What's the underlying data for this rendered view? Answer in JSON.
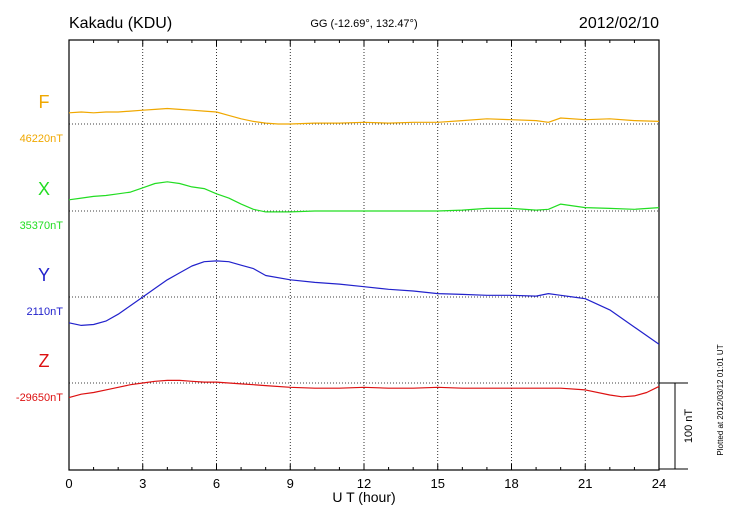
{
  "header": {
    "station": "Kakadu (KDU)",
    "coords": "GG (-12.69°, 132.47°)",
    "date": "2012/02/10"
  },
  "footer_note": "Plotted at 2012/03/12 01:01 UT",
  "chart_data": {
    "type": "line",
    "xlabel": "U T (hour)",
    "xlim": [
      0,
      24
    ],
    "x_ticks": [
      0,
      3,
      6,
      9,
      12,
      15,
      18,
      21,
      24
    ],
    "x_tick_labels": [
      "0",
      "3",
      "6",
      "9",
      "12",
      "15",
      "18",
      "21",
      "24"
    ],
    "scale_bar_label": "100 nT",
    "scale_bar_nT": 100,
    "series": [
      {
        "name": "F",
        "baseline_label": "46220nT",
        "baseline_nT": 46220,
        "color": "#f0a800",
        "x": [
          0,
          0.5,
          1,
          1.5,
          2,
          2.5,
          3,
          3.5,
          4,
          4.5,
          5,
          5.5,
          6,
          6.5,
          7,
          7.5,
          8,
          8.5,
          9,
          10,
          11,
          12,
          13,
          14,
          15,
          16,
          17,
          18,
          19,
          19.5,
          20,
          21,
          22,
          23,
          24
        ],
        "values": [
          13,
          14,
          13,
          14,
          14,
          15,
          16,
          17,
          18,
          17,
          16,
          15,
          14,
          10,
          6,
          3,
          1,
          0,
          0,
          1,
          1,
          2,
          1,
          2,
          2,
          4,
          6,
          5,
          4,
          2,
          7,
          5,
          6,
          4,
          3
        ]
      },
      {
        "name": "X",
        "baseline_label": "35370nT",
        "baseline_nT": 35370,
        "color": "#22dd22",
        "x": [
          0,
          0.5,
          1,
          1.5,
          2,
          2.5,
          3,
          3.5,
          4,
          4.5,
          5,
          5.5,
          6,
          6.5,
          7,
          7.5,
          8,
          8.5,
          9,
          10,
          11,
          12,
          13,
          14,
          15,
          16,
          17,
          18,
          19,
          19.5,
          20,
          21,
          22,
          23,
          24
        ],
        "values": [
          13,
          15,
          17,
          18,
          20,
          22,
          27,
          32,
          34,
          32,
          28,
          26,
          20,
          15,
          8,
          2,
          -1,
          -1,
          -1,
          0,
          0,
          0,
          0,
          0,
          0,
          1,
          3,
          3,
          1,
          2,
          8,
          4,
          3,
          2,
          4
        ]
      },
      {
        "name": "Y",
        "baseline_label": "2110nT",
        "baseline_nT": 2110,
        "color": "#2222cc",
        "x": [
          0,
          0.5,
          1,
          1.5,
          2,
          2.5,
          3,
          3.5,
          4,
          4.5,
          5,
          5.5,
          6,
          6.5,
          7,
          7.5,
          8,
          9,
          10,
          11,
          12,
          13,
          14,
          15,
          16,
          17,
          18,
          19,
          19.5,
          20,
          20.5,
          21,
          22,
          23,
          24
        ],
        "values": [
          -30,
          -33,
          -32,
          -28,
          -20,
          -10,
          0,
          10,
          20,
          28,
          36,
          41,
          42,
          41,
          37,
          33,
          25,
          20,
          17,
          15,
          12,
          9,
          7,
          4,
          3,
          2,
          2,
          1,
          4,
          2,
          0,
          -2,
          -15,
          -35,
          -55
        ]
      },
      {
        "name": "Z",
        "baseline_label": "-29650nT",
        "baseline_nT": -29650,
        "color": "#dd1111",
        "x": [
          0,
          0.5,
          1,
          1.5,
          2,
          2.5,
          3,
          3.5,
          4,
          4.5,
          5,
          5.5,
          6,
          6.5,
          7,
          7.5,
          8,
          9,
          10,
          11,
          12,
          13,
          14,
          15,
          16,
          17,
          18,
          19,
          20,
          21,
          22,
          22.5,
          23,
          23.5,
          24
        ],
        "values": [
          -17,
          -13,
          -11,
          -8,
          -5,
          -2,
          0,
          2,
          3,
          3,
          2,
          1,
          1,
          0,
          -1,
          -2,
          -3,
          -5,
          -6,
          -6,
          -5,
          -6,
          -6,
          -5,
          -6,
          -6,
          -6,
          -6,
          -6,
          -8,
          -14,
          -16,
          -15,
          -11,
          -4
        ]
      }
    ]
  }
}
